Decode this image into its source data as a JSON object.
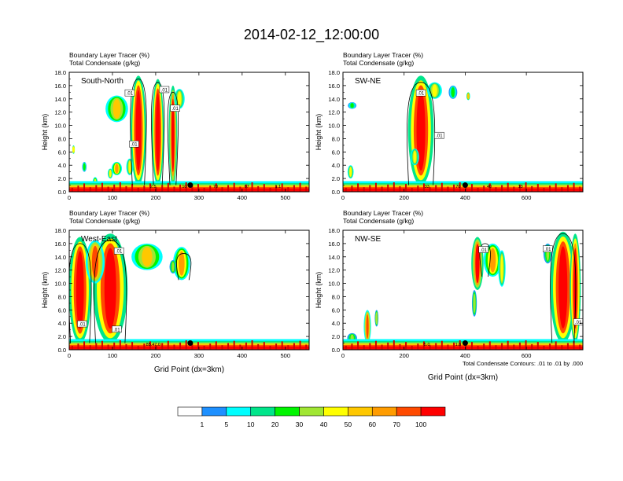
{
  "figure": {
    "title": "2014-02-12_12:00:00",
    "colorbar": {
      "levels": [
        "1",
        "5",
        "10",
        "20",
        "30",
        "40",
        "50",
        "60",
        "70",
        "100"
      ],
      "colors": [
        "#ffffff",
        "#1e90ff",
        "#00ffff",
        "#00e58a",
        "#00f500",
        "#a0e632",
        "#ffff00",
        "#ffc800",
        "#ff9c00",
        "#ff4a00",
        "#ff0000"
      ]
    },
    "contour_note": "Total Condensate Contours: .01 to .01 by .000",
    "ground_color": "#d20000"
  },
  "chart_data": [
    {
      "type": "heatmap",
      "panel_label": "South-North",
      "field_labels": [
        "Boundary Layer Tracer    (%)",
        "Total Condensate   (g/kg)"
      ],
      "ylabel": "Height (km)",
      "xlabel": "",
      "xlim": [
        0,
        555
      ],
      "ylim": [
        0,
        18
      ],
      "xticks": [
        0,
        100,
        200,
        300,
        400,
        500
      ],
      "yticks": [
        0.0,
        2.0,
        4.0,
        6.0,
        8.0,
        10.0,
        12.0,
        14.0,
        16.0,
        18.0
      ],
      "marker_x": 280,
      "contour_labels": [
        {
          "text": ".01",
          "x": 140,
          "y": 14.9
        },
        {
          "text": ".01",
          "x": 220,
          "y": 15.4
        },
        {
          "text": ".01",
          "x": 245,
          "y": 12.6
        },
        {
          "text": ".01",
          "x": 150,
          "y": 7.2
        }
      ],
      "ground_labels": [
        "2.5",
        "10",
        "70",
        "67",
        "1.1"
      ],
      "plumes": [
        {
          "x": 60,
          "z0": 0.5,
          "z1": 2.2,
          "w": 6,
          "v": 0.45
        },
        {
          "x": 35,
          "z0": 3.0,
          "z1": 4.5,
          "w": 5,
          "v": 0.3
        },
        {
          "x": 10,
          "z0": 5.7,
          "z1": 7.0,
          "w": 3,
          "v": 0.5
        },
        {
          "x": 110,
          "z0": 10.5,
          "z1": 14.5,
          "w": 26,
          "v": 0.55
        },
        {
          "x": 110,
          "z0": 2.5,
          "z1": 4.5,
          "w": 12,
          "v": 0.6
        },
        {
          "x": 95,
          "z0": 2.0,
          "z1": 3.5,
          "w": 6,
          "v": 0.5
        },
        {
          "x": 160,
          "z0": 1.0,
          "z1": 17.5,
          "w": 18,
          "v": 0.95
        },
        {
          "x": 205,
          "z0": 1.0,
          "z1": 17.0,
          "w": 14,
          "v": 0.9
        },
        {
          "x": 240,
          "z0": 1.0,
          "z1": 16.0,
          "w": 10,
          "v": 0.8
        },
        {
          "x": 140,
          "z0": 2.5,
          "z1": 5.0,
          "w": 8,
          "v": 0.5
        },
        {
          "x": 255,
          "z0": 12.5,
          "z1": 15.5,
          "w": 12,
          "v": 0.5
        }
      ],
      "outlines": [
        {
          "x": 160,
          "z0": 1.0,
          "z1": 17.0,
          "w": 14
        },
        {
          "x": 205,
          "z0": 1.0,
          "z1": 16.5,
          "w": 10
        },
        {
          "x": 240,
          "z0": 1.0,
          "z1": 15.0,
          "w": 7
        }
      ]
    },
    {
      "type": "heatmap",
      "panel_label": "SW-NE",
      "field_labels": [
        "Boundary Layer Tracer    (%)",
        "Total Condensate   (g/kg)"
      ],
      "ylabel": "Height (km)",
      "xlabel": "",
      "xlim": [
        0,
        785
      ],
      "ylim": [
        0,
        18
      ],
      "xticks": [
        0,
        200,
        400,
        600
      ],
      "yticks": [
        0.0,
        2.0,
        4.0,
        6.0,
        8.0,
        10.0,
        12.0,
        14.0,
        16.0,
        18.0
      ],
      "marker_x": 400,
      "contour_labels": [
        {
          "text": ".01",
          "x": 255,
          "y": 14.9
        },
        {
          "text": ".01",
          "x": 315,
          "y": 8.5
        }
      ],
      "ground_labels": [
        "33",
        "70",
        "40",
        "13"
      ],
      "plumes": [
        {
          "x": 25,
          "z0": 2.0,
          "z1": 4.0,
          "w": 10,
          "v": 0.5
        },
        {
          "x": 30,
          "z0": 12.5,
          "z1": 13.5,
          "w": 14,
          "v": 0.3
        },
        {
          "x": 255,
          "z0": 1.0,
          "z1": 17.5,
          "w": 42,
          "v": 0.9
        },
        {
          "x": 235,
          "z0": 4.0,
          "z1": 6.5,
          "w": 14,
          "v": 0.5
        },
        {
          "x": 300,
          "z0": 14.0,
          "z1": 16.5,
          "w": 24,
          "v": 0.5
        },
        {
          "x": 360,
          "z0": 14.0,
          "z1": 16.0,
          "w": 14,
          "v": 0.3
        },
        {
          "x": 410,
          "z0": 13.8,
          "z1": 15.0,
          "w": 6,
          "v": 0.55
        }
      ],
      "outlines": [
        {
          "x": 255,
          "z0": 1.0,
          "z1": 16.5,
          "w": 40
        }
      ]
    },
    {
      "type": "heatmap",
      "panel_label": "West-East",
      "field_labels": [
        "Boundary Layer Tracer    (%)",
        "Total Condensate   (g/kg)"
      ],
      "ylabel": "Height (km)",
      "xlabel": "Grid Point (dx=3km)",
      "xlim": [
        0,
        555
      ],
      "ylim": [
        0,
        18
      ],
      "xticks": [
        0,
        100,
        200,
        300,
        400,
        500
      ],
      "yticks": [
        0.0,
        2.0,
        4.0,
        6.0,
        8.0,
        10.0,
        12.0,
        14.0,
        16.0,
        18.0
      ],
      "marker_x": 280,
      "contour_labels": [
        {
          "text": ".01",
          "x": 115,
          "y": 14.9
        },
        {
          "text": ".01",
          "x": 30,
          "y": 3.9
        },
        {
          "text": ".01",
          "x": 110,
          "y": 3.1
        }
      ],
      "ground_labels": [
        "85.47.0"
      ],
      "plumes": [
        {
          "x": 25,
          "z0": 1.0,
          "z1": 17.0,
          "w": 26,
          "v": 0.9
        },
        {
          "x": 95,
          "z0": 1.0,
          "z1": 17.5,
          "w": 40,
          "v": 0.9
        },
        {
          "x": 60,
          "z0": 10.0,
          "z1": 16.5,
          "w": 22,
          "v": 0.7
        },
        {
          "x": 180,
          "z0": 12.0,
          "z1": 16.0,
          "w": 36,
          "v": 0.55
        },
        {
          "x": 260,
          "z0": 10.5,
          "z1": 15.5,
          "w": 20,
          "v": 0.6
        },
        {
          "x": 240,
          "z0": 11.5,
          "z1": 13.5,
          "w": 8,
          "v": 0.4
        }
      ],
      "outlines": [
        {
          "x": 25,
          "z0": 1.0,
          "z1": 16.0,
          "w": 22
        },
        {
          "x": 95,
          "z0": 1.0,
          "z1": 16.5,
          "w": 34
        },
        {
          "x": 265,
          "z0": 10.5,
          "z1": 14.5,
          "w": 12
        }
      ]
    },
    {
      "type": "heatmap",
      "panel_label": "NW-SE",
      "field_labels": [
        "Boundary Layer Tracer    (%)",
        "Total Condensate   (g/kg)"
      ],
      "ylabel": "Height (km)",
      "xlabel": "Grid Point (dx=3km)",
      "xlim": [
        0,
        785
      ],
      "ylim": [
        0,
        18
      ],
      "xticks": [
        0,
        200,
        400,
        600
      ],
      "yticks": [
        0.0,
        2.0,
        4.0,
        6.0,
        8.0,
        10.0,
        12.0,
        14.0,
        16.0,
        18.0
      ],
      "marker_x": 400,
      "contour_labels": [
        {
          "text": ".01",
          "x": 460,
          "y": 15.1
        },
        {
          "text": ".01",
          "x": 670,
          "y": 15.2
        },
        {
          "text": ".01",
          "x": 770,
          "y": 4.2
        }
      ],
      "ground_labels": [
        "5.0",
        "1.8"
      ],
      "plumes": [
        {
          "x": 80,
          "z0": 1.0,
          "z1": 6.0,
          "w": 12,
          "v": 0.7
        },
        {
          "x": 110,
          "z0": 3.5,
          "z1": 6.0,
          "w": 6,
          "v": 0.4
        },
        {
          "x": 30,
          "z0": 1.0,
          "z1": 2.5,
          "w": 16,
          "v": 0.4
        },
        {
          "x": 440,
          "z0": 9.0,
          "z1": 17.0,
          "w": 20,
          "v": 0.8
        },
        {
          "x": 490,
          "z0": 11.0,
          "z1": 16.0,
          "w": 30,
          "v": 0.6
        },
        {
          "x": 520,
          "z0": 9.5,
          "z1": 15.0,
          "w": 12,
          "v": 0.5
        },
        {
          "x": 430,
          "z0": 5.0,
          "z1": 9.0,
          "w": 8,
          "v": 0.4
        },
        {
          "x": 720,
          "z0": 1.0,
          "z1": 17.8,
          "w": 42,
          "v": 0.95
        },
        {
          "x": 760,
          "z0": 1.0,
          "z1": 17.5,
          "w": 18,
          "v": 0.85
        },
        {
          "x": 670,
          "z0": 13.0,
          "z1": 16.0,
          "w": 14,
          "v": 0.4
        }
      ],
      "outlines": [
        {
          "x": 720,
          "z0": 1.0,
          "z1": 17.5,
          "w": 36
        },
        {
          "x": 465,
          "z0": 11.0,
          "z1": 16.0,
          "w": 10
        }
      ]
    }
  ]
}
